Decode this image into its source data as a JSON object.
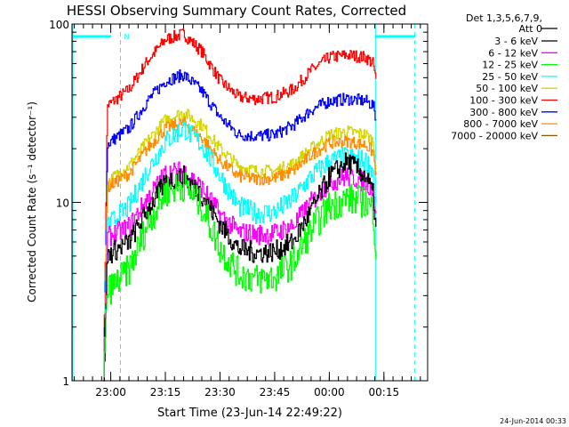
{
  "chart_data": {
    "type": "line",
    "title": "HESSI Observing Summary Count Rates, Corrected",
    "xlabel": "Start Time (23-Jun-14 22:49:22)",
    "ylabel": "Corrected Count Rate (s⁻¹ detector⁻¹)",
    "y_scale": "log",
    "ylim": [
      1,
      100
    ],
    "y_ticks": [
      "1",
      "10",
      "100"
    ],
    "xlim": [
      "22:49:22",
      "00:27:00"
    ],
    "x_ticks": [
      "23:00",
      "23:15",
      "23:30",
      "23:45",
      "00:00",
      "00:15"
    ],
    "legend_header": [
      "Det 1,3,5,6,7,9,",
      "Att 0"
    ],
    "legend_position": "top-right",
    "timestamp": "24-Jun-2014 00:33",
    "saa_flag": "N",
    "grid": false,
    "series": [
      {
        "name": "3 - 6 keV",
        "color": "#000000",
        "x": [
          "22:58",
          "22:59",
          "23:00",
          "23:05",
          "23:10",
          "23:15",
          "23:20",
          "23:25",
          "23:30",
          "23:35",
          "23:40",
          "23:45",
          "23:50",
          "23:55",
          "00:00",
          "00:05",
          "00:10",
          "00:12",
          "00:13"
        ],
        "y": [
          1,
          5.0,
          5.2,
          6.0,
          9.0,
          13.0,
          14.0,
          11.0,
          7.5,
          5.5,
          5.2,
          5.3,
          6.0,
          9.0,
          14.0,
          17.0,
          14.0,
          11.0,
          6.0
        ]
      },
      {
        "name": "6 - 12 keV",
        "color": "#ff00ff",
        "x": [
          "22:58",
          "22:59",
          "23:00",
          "23:05",
          "23:10",
          "23:15",
          "23:20",
          "23:25",
          "23:30",
          "23:35",
          "23:40",
          "23:45",
          "23:50",
          "23:55",
          "00:00",
          "00:05",
          "00:10",
          "00:12",
          "00:13"
        ],
        "y": [
          1,
          6.3,
          6.5,
          7.3,
          10.5,
          14.5,
          15.0,
          12.0,
          8.5,
          6.8,
          6.6,
          6.7,
          7.4,
          10.0,
          13.0,
          14.0,
          13.0,
          12.0,
          7.0
        ]
      },
      {
        "name": "12 - 25 keV",
        "color": "#00ff00",
        "x": [
          "22:58",
          "22:59",
          "23:00",
          "23:05",
          "23:10",
          "23:15",
          "23:20",
          "23:25",
          "23:30",
          "23:35",
          "23:40",
          "23:45",
          "23:50",
          "23:55",
          "00:00",
          "00:05",
          "00:10",
          "00:12",
          "00:13"
        ],
        "y": [
          1,
          3.2,
          3.3,
          4.2,
          7.5,
          11.5,
          12.5,
          9.5,
          5.5,
          4.0,
          3.7,
          3.8,
          4.6,
          7.0,
          9.5,
          10.5,
          10.0,
          9.0,
          4.5
        ]
      },
      {
        "name": "25 - 50 keV",
        "color": "#00ffff",
        "x": [
          "22:58",
          "22:59",
          "23:00",
          "23:05",
          "23:10",
          "23:15",
          "23:20",
          "23:25",
          "23:30",
          "23:35",
          "23:40",
          "23:45",
          "23:50",
          "23:55",
          "00:00",
          "00:05",
          "00:10",
          "00:12",
          "00:13"
        ],
        "y": [
          1,
          7.5,
          7.7,
          9.5,
          15.0,
          22.0,
          26.0,
          21.0,
          14.0,
          9.5,
          8.7,
          8.8,
          10.5,
          14.0,
          17.0,
          18.0,
          17.0,
          15.0,
          8.0
        ]
      },
      {
        "name": "50 - 100 keV",
        "color": "#d4d400",
        "x": [
          "22:58",
          "22:59",
          "23:00",
          "23:05",
          "23:10",
          "23:15",
          "23:20",
          "23:25",
          "23:30",
          "23:35",
          "23:40",
          "23:45",
          "23:50",
          "23:55",
          "00:00",
          "00:05",
          "00:10",
          "00:12",
          "00:13"
        ],
        "y": [
          1,
          13.0,
          13.5,
          16.0,
          22.0,
          29.0,
          32.0,
          27.0,
          20.0,
          16.0,
          15.0,
          15.0,
          16.5,
          20.0,
          24.0,
          25.0,
          24.0,
          22.0,
          14.0
        ]
      },
      {
        "name": "100 - 300 keV",
        "color": "#ff0000",
        "x": [
          "22:58",
          "22:59",
          "23:00",
          "23:05",
          "23:10",
          "23:15",
          "23:20",
          "23:25",
          "23:30",
          "23:35",
          "23:40",
          "23:45",
          "23:50",
          "23:55",
          "00:00",
          "00:05",
          "00:10",
          "00:12",
          "00:13"
        ],
        "y": [
          1,
          35.0,
          36.0,
          43.0,
          62.0,
          82.0,
          88.0,
          70.0,
          48.0,
          39.0,
          38.0,
          39.0,
          43.0,
          55.0,
          65.0,
          67.0,
          65.0,
          60.0,
          45.0
        ]
      },
      {
        "name": "300 - 800 keV",
        "color": "#0000ff",
        "x": [
          "22:58",
          "22:59",
          "23:00",
          "23:05",
          "23:10",
          "23:15",
          "23:20",
          "23:25",
          "23:30",
          "23:35",
          "23:40",
          "23:45",
          "23:50",
          "23:55",
          "00:00",
          "00:05",
          "00:10",
          "00:12",
          "00:13"
        ],
        "y": [
          1,
          21.0,
          22.0,
          26.0,
          37.0,
          48.0,
          52.0,
          42.0,
          30.0,
          24.0,
          23.5,
          24.0,
          27.0,
          33.0,
          37.0,
          38.0,
          37.0,
          35.0,
          28.0
        ]
      },
      {
        "name": "800 - 7000 keV",
        "color": "#ff8c00",
        "x": [
          "22:58",
          "22:59",
          "23:00",
          "23:05",
          "23:10",
          "23:15",
          "23:20",
          "23:25",
          "23:30",
          "23:35",
          "23:40",
          "23:45",
          "23:50",
          "23:55",
          "00:00",
          "00:05",
          "00:10",
          "00:12",
          "00:13"
        ],
        "y": [
          1,
          12.0,
          12.5,
          14.5,
          20.0,
          26.0,
          28.0,
          23.0,
          17.0,
          14.0,
          13.5,
          13.7,
          15.0,
          18.5,
          21.5,
          22.0,
          21.0,
          19.0,
          13.0
        ]
      },
      {
        "name": "7000 - 20000 keV",
        "color": "#8b5a00",
        "x": [
          "22:58",
          "22:59",
          "23:00",
          "23:05",
          "23:10",
          "23:15",
          "23:20",
          "23:25",
          "23:30",
          "23:35",
          "23:40",
          "23:45",
          "23:50",
          "23:55",
          "00:00",
          "00:05",
          "00:10",
          "00:12",
          "00:13"
        ],
        "y": [
          1,
          1,
          1,
          1,
          1,
          1,
          1,
          1,
          1,
          1,
          1,
          1,
          1,
          1,
          1,
          1,
          1,
          1,
          1
        ]
      }
    ]
  }
}
